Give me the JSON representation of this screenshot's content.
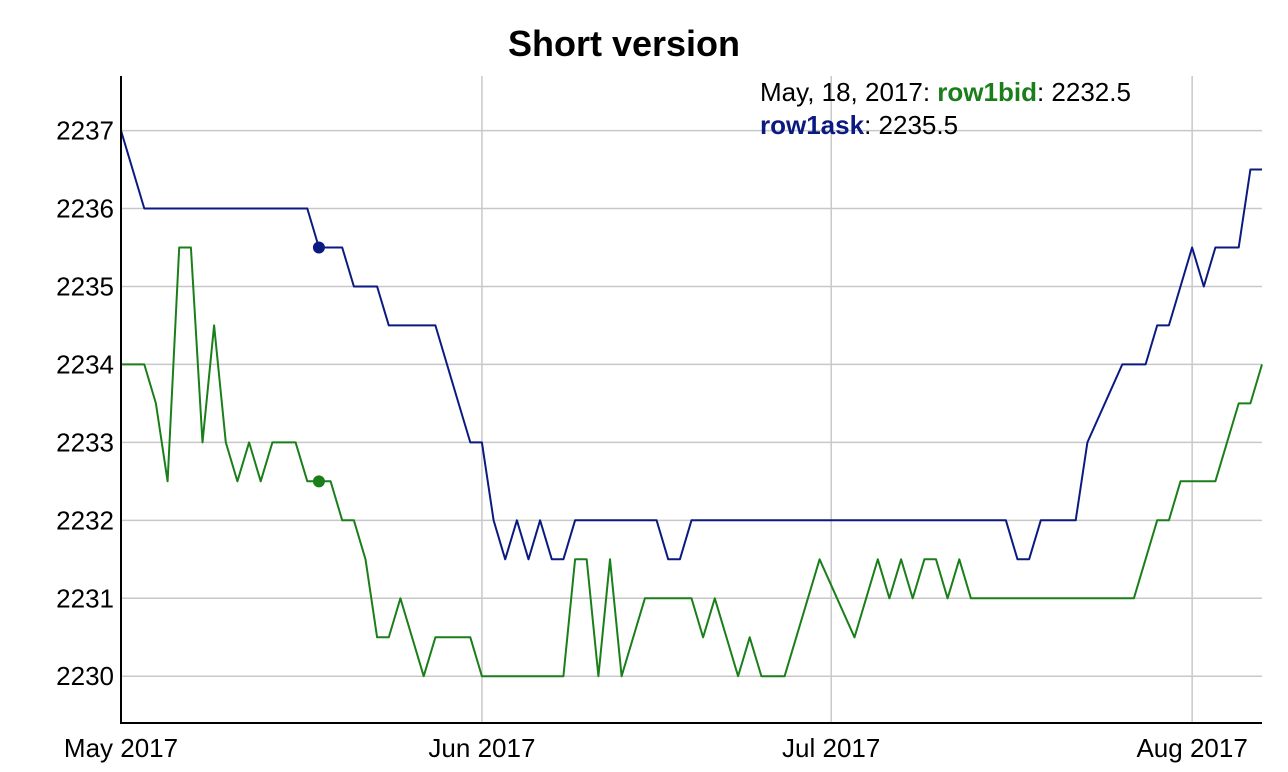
{
  "chart_data": {
    "type": "line",
    "title": "Short version",
    "xlabel": "",
    "ylabel": "",
    "x_range": [
      "2017-05-01",
      "2017-08-07"
    ],
    "ylim": [
      2229.4,
      2237.7
    ],
    "y_ticks": [
      2230,
      2231,
      2232,
      2233,
      2234,
      2235,
      2236,
      2237
    ],
    "x_ticks": [
      {
        "date": "2017-05-01",
        "label": "May 2017"
      },
      {
        "date": "2017-06-01",
        "label": "Jun 2017"
      },
      {
        "date": "2017-07-01",
        "label": "Jul 2017"
      },
      {
        "date": "2017-08-01",
        "label": "Aug 2017"
      }
    ],
    "grid": true,
    "legend": {
      "placement": "top-right",
      "date_text": "May, 18, 2017: ",
      "sep": ": ",
      "entries": [
        {
          "name": "row1bid",
          "value_text": "2232.5"
        },
        {
          "name": "row1ask",
          "value_text": "2235.5"
        }
      ]
    },
    "highlight_date": "2017-05-18",
    "series": [
      {
        "name": "row1bid",
        "color": "#1a7f1a",
        "points": [
          [
            "2017-05-01",
            2234
          ],
          [
            "2017-05-03",
            2234
          ],
          [
            "2017-05-04",
            2233.5
          ],
          [
            "2017-05-05",
            2232.5
          ],
          [
            "2017-05-06",
            2235.5
          ],
          [
            "2017-05-07",
            2235.5
          ],
          [
            "2017-05-08",
            2233
          ],
          [
            "2017-05-09",
            2234.5
          ],
          [
            "2017-05-10",
            2233
          ],
          [
            "2017-05-11",
            2232.5
          ],
          [
            "2017-05-12",
            2233
          ],
          [
            "2017-05-13",
            2232.5
          ],
          [
            "2017-05-14",
            2233
          ],
          [
            "2017-05-16",
            2233
          ],
          [
            "2017-05-17",
            2232.5
          ],
          [
            "2017-05-18",
            2232.5
          ],
          [
            "2017-05-19",
            2232.5
          ],
          [
            "2017-05-20",
            2232
          ],
          [
            "2017-05-21",
            2232
          ],
          [
            "2017-05-22",
            2231.5
          ],
          [
            "2017-05-23",
            2230.5
          ],
          [
            "2017-05-24",
            2230.5
          ],
          [
            "2017-05-25",
            2231
          ],
          [
            "2017-05-27",
            2230
          ],
          [
            "2017-05-28",
            2230.5
          ],
          [
            "2017-05-31",
            2230.5
          ],
          [
            "2017-06-01",
            2230
          ],
          [
            "2017-06-08",
            2230
          ],
          [
            "2017-06-09",
            2231.5
          ],
          [
            "2017-06-10",
            2231.5
          ],
          [
            "2017-06-11",
            2230
          ],
          [
            "2017-06-12",
            2231.5
          ],
          [
            "2017-06-13",
            2230
          ],
          [
            "2017-06-15",
            2231
          ],
          [
            "2017-06-19",
            2231
          ],
          [
            "2017-06-20",
            2230.5
          ],
          [
            "2017-06-21",
            2231
          ],
          [
            "2017-06-23",
            2230
          ],
          [
            "2017-06-24",
            2230.5
          ],
          [
            "2017-06-25",
            2230
          ],
          [
            "2017-06-27",
            2230
          ],
          [
            "2017-06-30",
            2231.5
          ],
          [
            "2017-07-03",
            2230.5
          ],
          [
            "2017-07-05",
            2231.5
          ],
          [
            "2017-07-06",
            2231
          ],
          [
            "2017-07-07",
            2231.5
          ],
          [
            "2017-07-08",
            2231
          ],
          [
            "2017-07-09",
            2231.5
          ],
          [
            "2017-07-10",
            2231.5
          ],
          [
            "2017-07-11",
            2231
          ],
          [
            "2017-07-12",
            2231.5
          ],
          [
            "2017-07-13",
            2231
          ],
          [
            "2017-07-20",
            2231
          ],
          [
            "2017-07-27",
            2231
          ],
          [
            "2017-07-29",
            2232
          ],
          [
            "2017-07-30",
            2232
          ],
          [
            "2017-07-31",
            2232.5
          ],
          [
            "2017-08-03",
            2232.5
          ],
          [
            "2017-08-05",
            2233.5
          ],
          [
            "2017-08-06",
            2233.5
          ],
          [
            "2017-08-07",
            2234
          ]
        ]
      },
      {
        "name": "row1ask",
        "color": "#0b1a80",
        "points": [
          [
            "2017-05-01",
            2237
          ],
          [
            "2017-05-03",
            2236
          ],
          [
            "2017-05-17",
            2236
          ],
          [
            "2017-05-18",
            2235.5
          ],
          [
            "2017-05-20",
            2235.5
          ],
          [
            "2017-05-21",
            2235
          ],
          [
            "2017-05-23",
            2235
          ],
          [
            "2017-05-24",
            2234.5
          ],
          [
            "2017-05-28",
            2234.5
          ],
          [
            "2017-05-30",
            2233.5
          ],
          [
            "2017-05-31",
            2233
          ],
          [
            "2017-06-01",
            2233
          ],
          [
            "2017-06-02",
            2232
          ],
          [
            "2017-06-03",
            2231.5
          ],
          [
            "2017-06-04",
            2232
          ],
          [
            "2017-06-05",
            2231.5
          ],
          [
            "2017-06-06",
            2232
          ],
          [
            "2017-06-07",
            2231.5
          ],
          [
            "2017-06-08",
            2231.5
          ],
          [
            "2017-06-09",
            2232
          ],
          [
            "2017-06-16",
            2232
          ],
          [
            "2017-06-17",
            2231.5
          ],
          [
            "2017-06-18",
            2231.5
          ],
          [
            "2017-06-19",
            2232
          ],
          [
            "2017-07-16",
            2232
          ],
          [
            "2017-07-17",
            2231.5
          ],
          [
            "2017-07-18",
            2231.5
          ],
          [
            "2017-07-19",
            2232
          ],
          [
            "2017-07-22",
            2232
          ],
          [
            "2017-07-23",
            2233
          ],
          [
            "2017-07-26",
            2234
          ],
          [
            "2017-07-28",
            2234
          ],
          [
            "2017-07-29",
            2234.5
          ],
          [
            "2017-07-30",
            2234.5
          ],
          [
            "2017-08-01",
            2235.5
          ],
          [
            "2017-08-02",
            2235
          ],
          [
            "2017-08-03",
            2235.5
          ],
          [
            "2017-08-05",
            2235.5
          ],
          [
            "2017-08-06",
            2236.5
          ],
          [
            "2017-08-07",
            2236.5
          ]
        ]
      }
    ]
  }
}
